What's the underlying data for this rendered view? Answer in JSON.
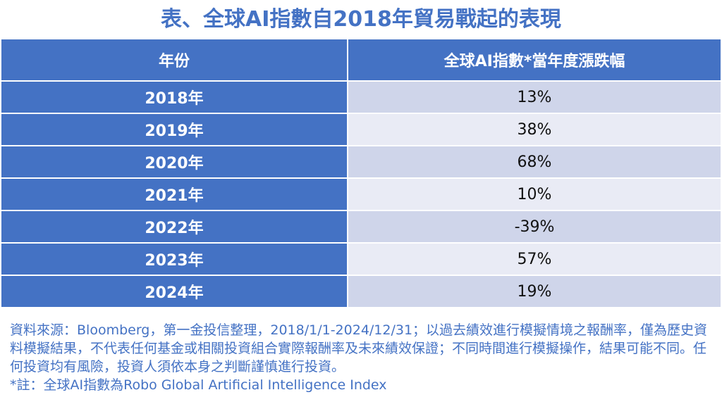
{
  "title": "表、全球AI指數自2018年貿易戰起的表現",
  "table": {
    "headers": [
      "年份",
      "全球AI指數*當年度漲跌幅"
    ],
    "rows": [
      {
        "year": "2018年",
        "value": "13%"
      },
      {
        "year": "2019年",
        "value": "38%"
      },
      {
        "year": "2020年",
        "value": "68%"
      },
      {
        "year": "2021年",
        "value": "10%"
      },
      {
        "year": "2022年",
        "value": "-39%"
      },
      {
        "year": "2023年",
        "value": "57%"
      },
      {
        "year": "2024年",
        "value": "19%"
      }
    ]
  },
  "notes": {
    "source": "資料來源：Bloomberg，第一金投信整理，2018/1/1-2024/12/31；以過去績效進行模擬情境之報酬率，僅為歷史資料模擬結果，不代表任何基金或相關投資組合實際報酬率及未來績效保證；不同時間進行模擬操作，結果可能不同。任何投資均有風險，投資人須依本身之判斷謹慎進行投資。",
    "footnote": "*註：全球AI指數為Robo Global Artificial Intelligence Index"
  },
  "colors": {
    "title": "#4472C4",
    "header_bg": "#4472C4",
    "row_odd": "#CFD5EA",
    "row_even": "#E9EBF5",
    "notes_text": "#4472C4"
  }
}
